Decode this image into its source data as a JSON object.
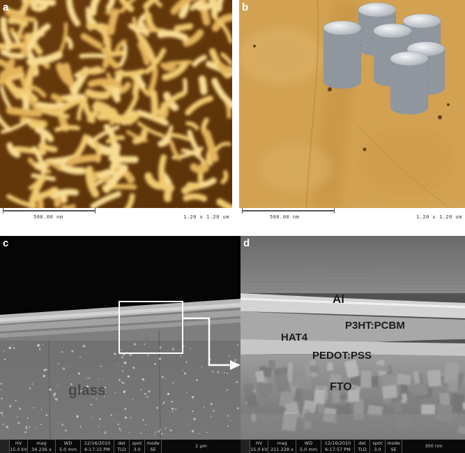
{
  "panels": {
    "a": {
      "label": "a"
    },
    "b": {
      "label": "b"
    },
    "c": {
      "label": "c"
    },
    "d": {
      "label": "d"
    }
  },
  "afm_footer": {
    "scale_text": "500.00 nm",
    "size_text": "1.20 x 1.20 um"
  },
  "panel_c": {
    "glass_label": "glass",
    "footer": [
      {
        "k": "HV",
        "v": "15.0 kV"
      },
      {
        "k": "mag",
        "v": "34 236 x"
      },
      {
        "k": "WD",
        "v": "5.0 mm"
      },
      {
        "k": "12/16/2010",
        "v": "6:17:15 PM"
      },
      {
        "k": "det",
        "v": "TLD"
      },
      {
        "k": "spot",
        "v": "3.0"
      },
      {
        "k": "mode",
        "v": "SE"
      }
    ],
    "scale": "2 μm"
  },
  "panel_d": {
    "layers": {
      "al": "Al",
      "p3ht": "P3HT:PCBM",
      "hat4": "HAT4",
      "pedot": "PEDOT:PSS",
      "fto": "FTO"
    },
    "footer": [
      {
        "k": "HV",
        "v": "15.0 kV"
      },
      {
        "k": "mag",
        "v": "211 228 x"
      },
      {
        "k": "WD",
        "v": "5.0 mm"
      },
      {
        "k": "12/16/2010",
        "v": "6:17:57 PM"
      },
      {
        "k": "det",
        "v": "TLD"
      },
      {
        "k": "spot",
        "v": "3.0"
      },
      {
        "k": "mode",
        "v": "SE"
      }
    ],
    "scale": "300 nm"
  },
  "colors": {
    "afm_dark": "#5a3208",
    "afm_light": "#f2cf7a",
    "afm_flat": "#d7a95a",
    "sem_gray": "#8a8a8a",
    "highlight_box": "#ffffff"
  }
}
